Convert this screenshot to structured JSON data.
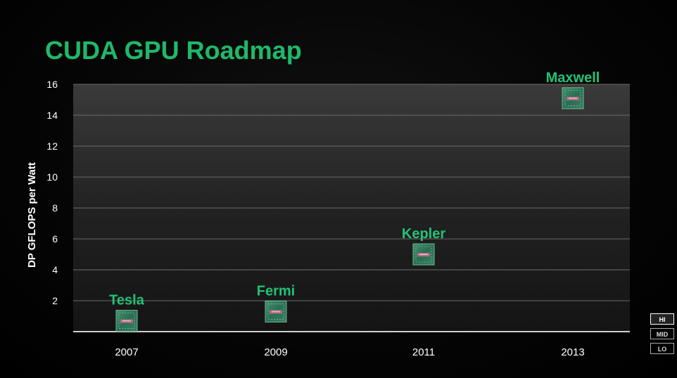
{
  "chart_data": {
    "type": "scatter",
    "title": "CUDA GPU Roadmap",
    "xlabel": "",
    "ylabel": "DP GFLOPS per Watt",
    "categories": [
      "2007",
      "2009",
      "2011",
      "2013"
    ],
    "ylim": [
      0,
      16
    ],
    "yticks": [
      2,
      4,
      6,
      8,
      10,
      12,
      14,
      16
    ],
    "grid": true,
    "points": [
      {
        "x": "2007",
        "y": 0.7,
        "label": "Tesla"
      },
      {
        "x": "2009",
        "y": 1.3,
        "label": "Fermi"
      },
      {
        "x": "2011",
        "y": 5.0,
        "label": "Kepler"
      },
      {
        "x": "2013",
        "y": 15.1,
        "label": "Maxwell"
      }
    ]
  },
  "colors": {
    "title": "#1fb86a",
    "label": "#22c277",
    "grid": "#6a6a6a",
    "axis_text": "#ffffff"
  },
  "quality_buttons": [
    "HI",
    "MID",
    "LO"
  ],
  "quality_selected": "HI"
}
